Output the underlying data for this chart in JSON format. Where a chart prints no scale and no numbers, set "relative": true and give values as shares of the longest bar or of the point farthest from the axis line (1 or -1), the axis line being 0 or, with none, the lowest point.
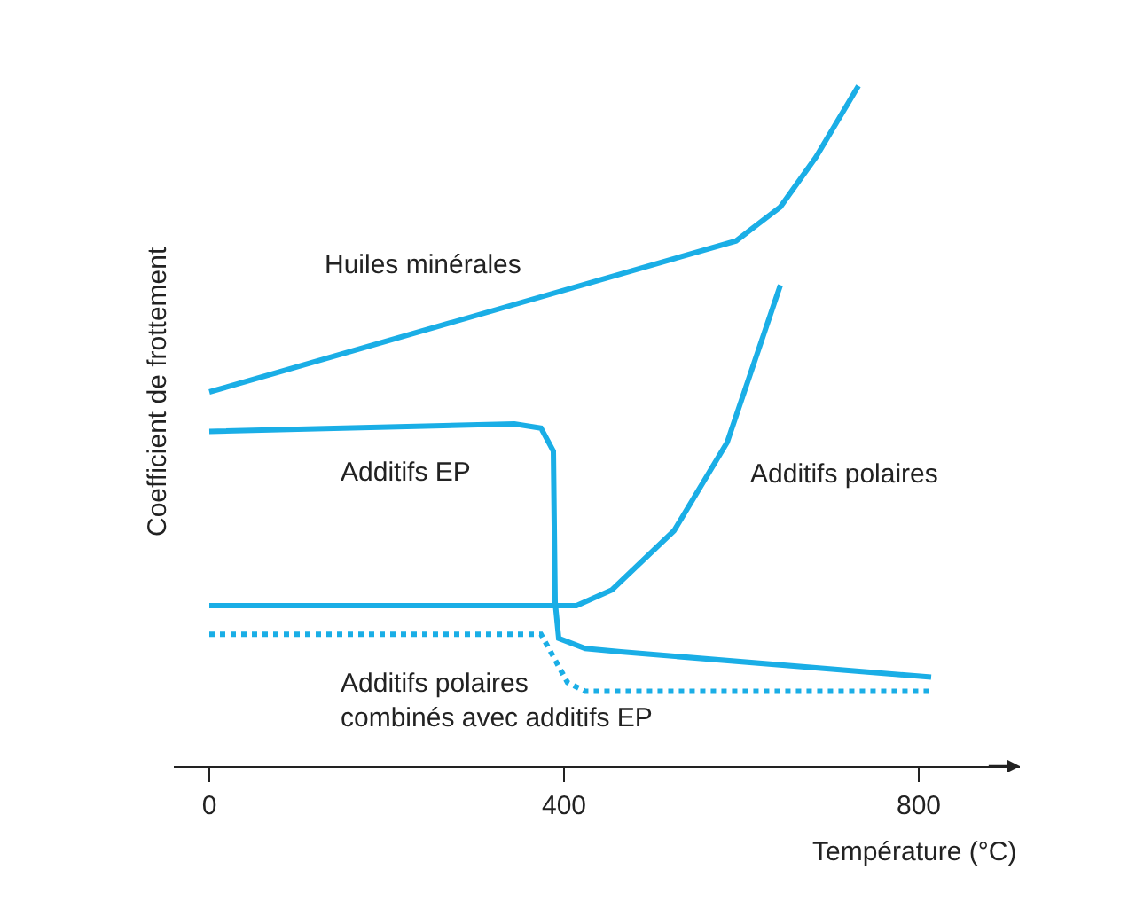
{
  "chart_data": {
    "type": "line",
    "relative": true,
    "xlabel": "Température (°C)",
    "ylabel": "Coefficient de frottement",
    "xlim": [
      -40,
      914
    ],
    "xticks": [
      0,
      400,
      800
    ],
    "legend": false,
    "marker": "none",
    "series": [
      {
        "name": "Huiles minérales",
        "color": "#1aaee6",
        "line_style": "solid",
        "x": [
          0,
          594,
          644,
          684,
          732
        ],
        "values": [
          0.55,
          0.772,
          0.822,
          0.895,
          1.0
        ]
      },
      {
        "name": "Additifs EP",
        "color": "#1aaee6",
        "line_style": "solid",
        "x": [
          0,
          344,
          374,
          388,
          390,
          394,
          424,
          464,
          814
        ],
        "values": [
          0.492,
          0.503,
          0.497,
          0.463,
          0.241,
          0.188,
          0.173,
          0.168,
          0.131
        ]
      },
      {
        "name": "Additifs polaires",
        "color": "#1aaee6",
        "line_style": "solid",
        "x": [
          0,
          414,
          454,
          524,
          584,
          644
        ],
        "values": [
          0.236,
          0.236,
          0.259,
          0.346,
          0.476,
          0.707
        ]
      },
      {
        "name": "Additifs polaires\ncombinés avec additifs EP",
        "color": "#1aaee6",
        "line_style": "dotted",
        "x": [
          0,
          374,
          404,
          424,
          814
        ],
        "values": [
          0.194,
          0.194,
          0.123,
          0.11,
          0.11
        ]
      }
    ]
  }
}
